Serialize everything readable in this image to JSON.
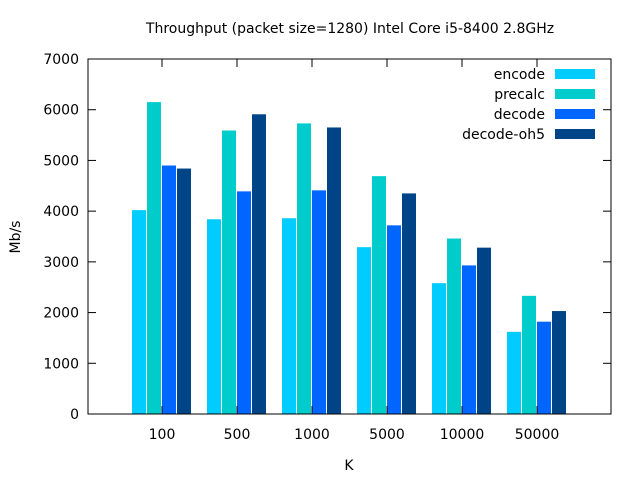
{
  "chart_data": {
    "type": "bar",
    "title": "Throughput (packet size=1280) Intel Core i5-8400 2.8GHz",
    "xlabel": "K",
    "ylabel": "Mb/s",
    "ylim": [
      0,
      7000
    ],
    "yticks": [
      0,
      1000,
      2000,
      3000,
      4000,
      5000,
      6000,
      7000
    ],
    "categories": [
      "100",
      "500",
      "1000",
      "5000",
      "10000",
      "50000"
    ],
    "grid": false,
    "legend_position": "top-right",
    "series": [
      {
        "name": "encode",
        "color": "#00ccff",
        "values": [
          4020,
          3840,
          3860,
          3290,
          2580,
          1620
        ]
      },
      {
        "name": "precalc",
        "color": "#00cccc",
        "values": [
          6150,
          5590,
          5730,
          4690,
          3460,
          2330
        ]
      },
      {
        "name": "decode",
        "color": "#0066ff",
        "values": [
          4900,
          4390,
          4410,
          3720,
          2930,
          1820
        ]
      },
      {
        "name": "decode-oh5",
        "color": "#004488",
        "values": [
          4840,
          5910,
          5650,
          4350,
          3280,
          2030
        ]
      }
    ]
  }
}
